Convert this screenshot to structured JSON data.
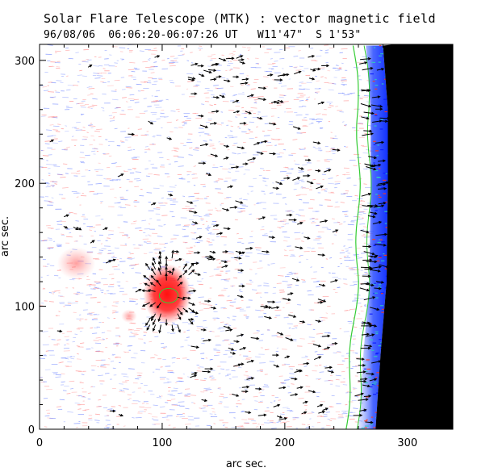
{
  "header": {
    "title": "Solar Flare Telescope (MTK) : vector magnetic field",
    "date": "96/08/06",
    "time_range": "06:06:20-06:07:26 UT",
    "longitude": "W11'47\"",
    "latitude": "S 1'53\""
  },
  "chart_data": {
    "type": "vector-magnetogram",
    "title": "Solar Flare Telescope (MTK) : vector magnetic field",
    "xlabel": "arc sec.",
    "ylabel": "arc sec.",
    "xlim": [
      0,
      337
    ],
    "ylim": [
      0,
      313
    ],
    "x_ticks": [
      0,
      100,
      200,
      300
    ],
    "y_ticks": [
      0,
      100,
      200,
      300
    ],
    "x_tick_labels": [
      "0",
      "100",
      "200",
      "300"
    ],
    "y_tick_labels": [
      "0",
      "100",
      "200",
      "300"
    ],
    "positive_polarity_color": "#ff2020",
    "negative_polarity_color": "#3050ff",
    "limb_contour_color": "#33cc33",
    "off_disk_color": "#000000",
    "vector_color": "#000000",
    "sunspot": {
      "center": [
        104,
        110
      ],
      "radius": 17
    },
    "plage_regions": [
      {
        "center": [
          73,
          92
        ],
        "radius": 5
      },
      {
        "center": [
          30,
          135
        ],
        "radius": 12
      }
    ],
    "limb_x_at_y": {
      "y": [
        0,
        60,
        120,
        200,
        260,
        313
      ],
      "x": [
        256,
        260,
        265,
        266,
        266,
        262
      ]
    }
  }
}
